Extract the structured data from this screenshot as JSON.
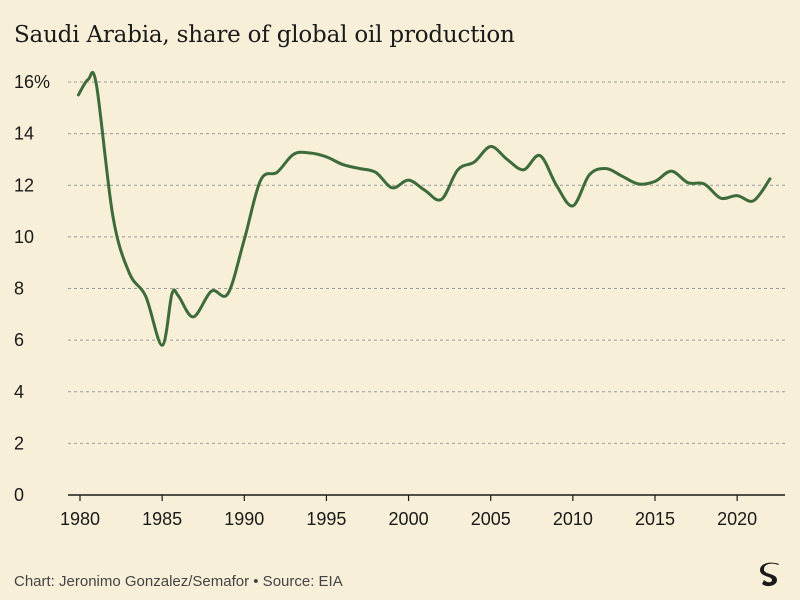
{
  "chart": {
    "title": "Saudi Arabia, share of global oil production",
    "footer": "Chart: Jeronimo Gonzalez/Semafor • Source: EIA",
    "logo_alt": "S"
  },
  "colors": {
    "background": "#f7efd8",
    "line": "#3d6b3a",
    "grid": "#9a9a9a",
    "axis": "#1a1a1a"
  },
  "chart_data": {
    "type": "line",
    "title": "Saudi Arabia, share of global oil production",
    "xlabel": "",
    "ylabel": "",
    "xlim": [
      1980,
      2022
    ],
    "ylim": [
      0,
      16
    ],
    "x_ticks": [
      1980,
      1985,
      1990,
      1995,
      2000,
      2005,
      2010,
      2015,
      2020
    ],
    "y_ticks": [
      0,
      2,
      4,
      6,
      8,
      10,
      12,
      14,
      16
    ],
    "y_tick_labels": [
      "0",
      "2",
      "4",
      "6",
      "8",
      "10",
      "12",
      "14",
      "16%"
    ],
    "grid": true,
    "series": [
      {
        "x": [
          1979.9,
          1980.5,
          1981,
          1982,
          1983,
          1984,
          1985,
          1985.6,
          1986,
          1986.9,
          1988,
          1989,
          1990,
          1991,
          1992,
          1993,
          1994,
          1995,
          1996,
          1997,
          1998,
          1999,
          2000,
          2001,
          2002,
          2003,
          2004,
          2005,
          2006,
          2007,
          2008,
          2009,
          2010,
          2011,
          2012,
          2013,
          2014,
          2015,
          2016,
          2017,
          2018,
          2019,
          2020,
          2021,
          2022
        ],
        "y": [
          15.5,
          16.1,
          15.9,
          10.8,
          8.6,
          7.7,
          5.8,
          7.8,
          7.7,
          6.9,
          7.9,
          7.8,
          9.9,
          12.2,
          12.5,
          13.2,
          13.25,
          13.1,
          12.8,
          12.65,
          12.5,
          11.9,
          12.2,
          11.8,
          11.45,
          12.6,
          12.9,
          13.5,
          13.0,
          12.6,
          13.15,
          12.0,
          11.2,
          12.4,
          12.65,
          12.35,
          12.05,
          12.15,
          12.55,
          12.1,
          12.05,
          11.5,
          11.6,
          11.4,
          12.25
        ]
      }
    ]
  }
}
